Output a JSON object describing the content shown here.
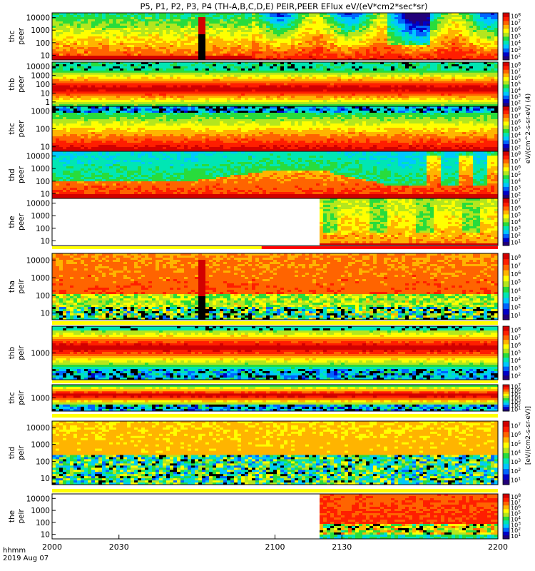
{
  "chart_data": {
    "type": "heatmap",
    "title": "P5, P1, P2, P3, P4 (TH-A,B,C,D,E) PEIR,PEER EFlux eV/(eV*cm2*sec*sr)",
    "colorbar_label_peer": "eV/(cm^2-s-sr-eV) (4)",
    "colorbar_label_peir": "[eV/(cm2-s-sr-eV)]",
    "x_tick_labels": [
      "2000",
      "2030",
      "2100",
      "2130",
      "2200"
    ],
    "x_corner_label_line1": "hhmm",
    "x_corner_label_line2": "2019 Aug 07",
    "panels": [
      {
        "name": "thc peer",
        "probe": "thc",
        "species": "peer",
        "ylabel_line1": "thc",
        "ylabel_line2": "peer",
        "yticks": [
          "10",
          "100",
          "1000",
          "10000"
        ],
        "cbar_ticks": [
          "10^2",
          "10^3",
          "10^4",
          "10^5",
          "10^6",
          "10^7",
          "10^8"
        ],
        "profile": "thc_peer"
      },
      {
        "name": "thb peer",
        "probe": "thb",
        "species": "peer",
        "ylabel_line1": "thb",
        "ylabel_line2": "peer",
        "yticks": [
          "1",
          "10",
          "100",
          "1000",
          "10000"
        ],
        "cbar_ticks": [
          "10^2",
          "10^3",
          "10^4",
          "10^5",
          "10^6",
          "10^7",
          "10^8"
        ],
        "profile": "thb_peer"
      },
      {
        "name": "thc peer",
        "probe": "thc",
        "species": "peer",
        "ylabel_line1": "thc",
        "ylabel_line2": "peer",
        "yticks": [
          "10",
          "100",
          "1000"
        ],
        "cbar_ticks": [
          "10^2",
          "10^3",
          "10^4",
          "10^5",
          "10^6",
          "10^7",
          "10^8"
        ],
        "profile": "thc_peer2"
      },
      {
        "name": "thd peer",
        "probe": "thd",
        "species": "peer",
        "ylabel_line1": "thd",
        "ylabel_line2": "peer",
        "yticks": [
          "10",
          "100",
          "1000",
          "10000"
        ],
        "cbar_ticks": [
          "10^2",
          "10^3",
          "10^4",
          "10^5",
          "10^6",
          "10^7",
          "10^8"
        ],
        "profile": "thd_peer"
      },
      {
        "name": "the peer",
        "probe": "the",
        "species": "peer",
        "ylabel_line1": "the",
        "ylabel_line2": "peer",
        "yticks": [
          "10",
          "100",
          "1000",
          "10000"
        ],
        "cbar_ticks": [
          "10^1",
          "10^2",
          "10^3",
          "10^4",
          "10^5",
          "10^6",
          "10^7"
        ],
        "profile": "the_peer",
        "data_start_time": "2120"
      },
      {
        "name": "tha peir",
        "probe": "tha",
        "species": "peir",
        "ylabel_line1": "tha",
        "ylabel_line2": "peir",
        "yticks": [
          "10",
          "100",
          "1000",
          "10000"
        ],
        "cbar_ticks": [
          "10^1",
          "10^2",
          "10^3",
          "10^4",
          "10^5",
          "10^6",
          "10^7",
          "10^8"
        ],
        "profile": "tha_peir"
      },
      {
        "name": "thb peir",
        "probe": "thb",
        "species": "peir",
        "ylabel_line1": "thb",
        "ylabel_line2": "peir",
        "yticks": [
          "1000"
        ],
        "cbar_ticks": [
          "10^2",
          "10^3",
          "10^4",
          "10^5",
          "10^6",
          "10^7",
          "10^8"
        ],
        "profile": "thb_peir"
      },
      {
        "name": "thc peir",
        "probe": "thc",
        "species": "peir",
        "ylabel_line1": "thc",
        "ylabel_line2": "peir",
        "yticks": [
          "1000"
        ],
        "cbar_ticks": [
          "10^1",
          "10^2",
          "10^3",
          "10^4",
          "10^5",
          "10^6",
          "10^7"
        ],
        "profile": "thc_peir"
      },
      {
        "name": "thd peir",
        "probe": "thd",
        "species": "peir",
        "ylabel_line1": "thd",
        "ylabel_line2": "peir",
        "yticks": [
          "10",
          "100",
          "1000",
          "10000"
        ],
        "cbar_ticks": [
          "10^1",
          "10^2",
          "10^3",
          "10^4",
          "10^5",
          "10^6",
          "10^7"
        ],
        "profile": "thd_peir"
      },
      {
        "name": "the peir",
        "probe": "the",
        "species": "peir",
        "ylabel_line1": "the",
        "ylabel_line2": "peir",
        "yticks": [
          "10",
          "100",
          "1000",
          "10000"
        ],
        "cbar_ticks": [
          "10^1",
          "10^2",
          "10^3",
          "10^4",
          "10^5",
          "10^6",
          "10^7",
          "10^8"
        ],
        "profile": "the_peir",
        "data_start_time": "2120"
      }
    ],
    "colormap": [
      "#22007a",
      "#0000c8",
      "#0064ff",
      "#00c8ff",
      "#00e6b4",
      "#28dc3c",
      "#b4e61e",
      "#ffff00",
      "#ffb400",
      "#ff6400",
      "#ff1e00",
      "#d20000"
    ],
    "colors": {
      "status_bar_yellow": "#ffff00",
      "status_bar_red": "#ff0000",
      "background": "#ffffff",
      "mask": "#000000"
    }
  }
}
